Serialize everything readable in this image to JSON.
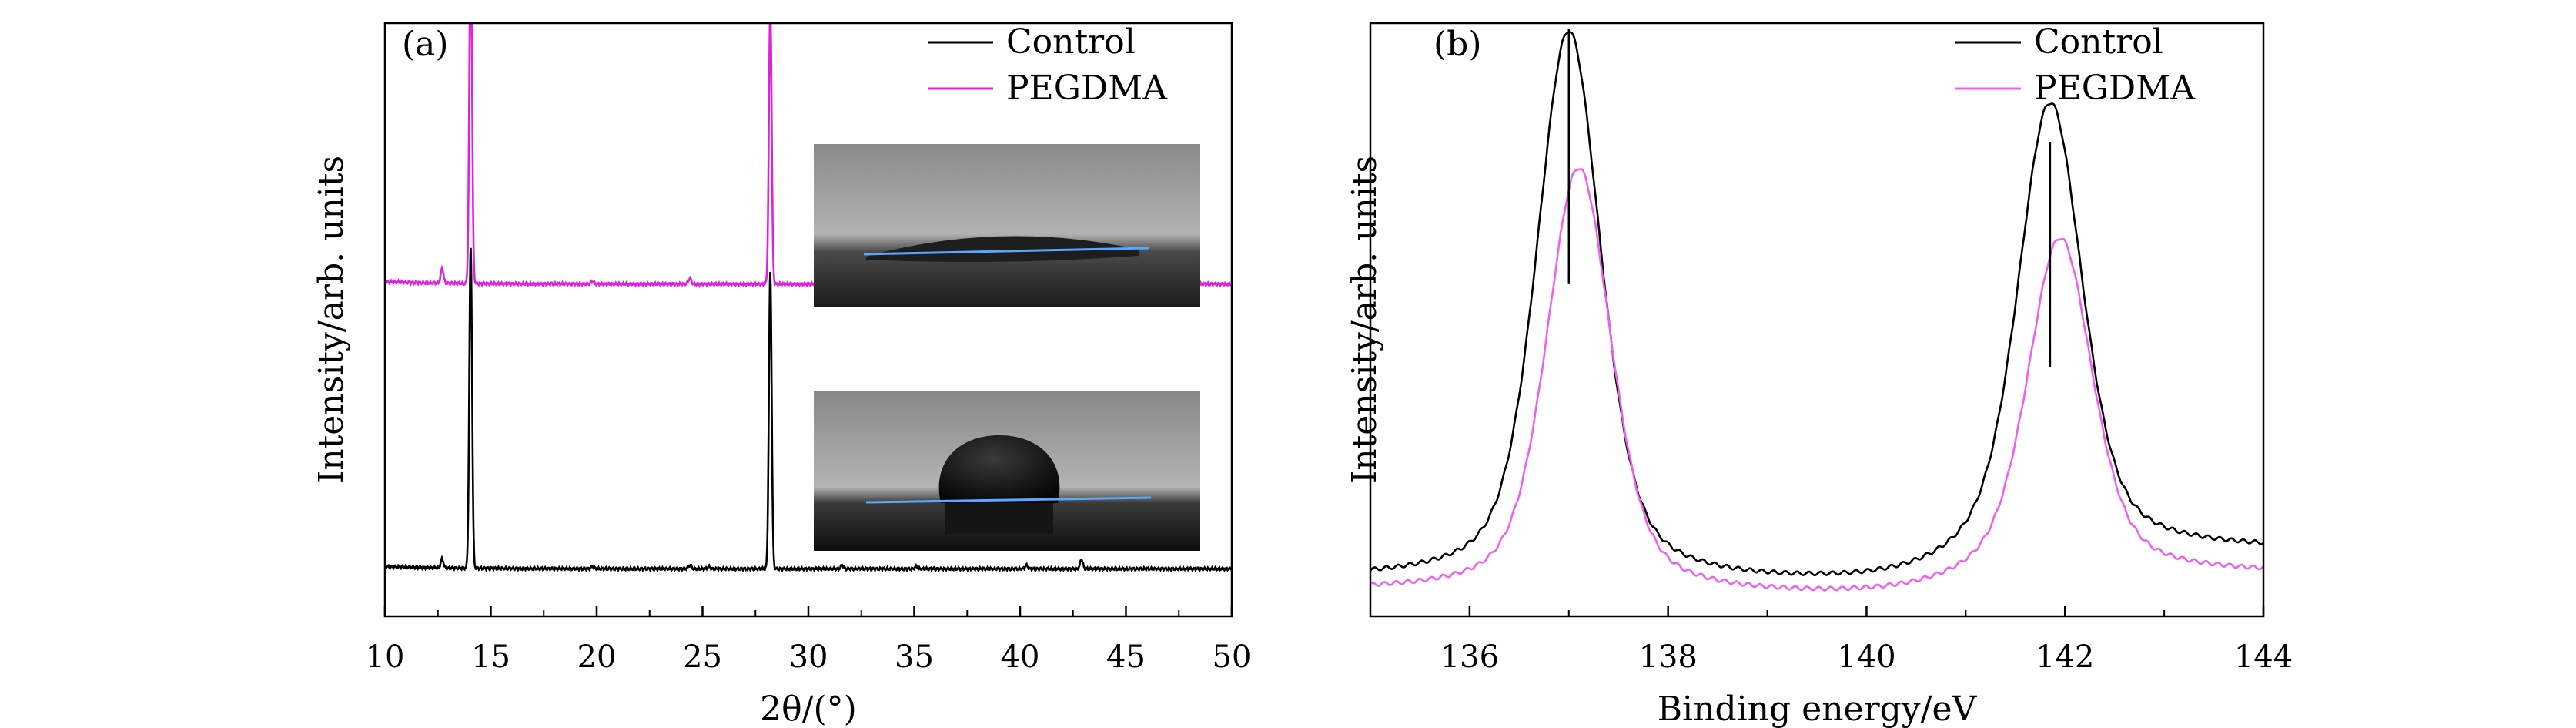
{
  "chart_data": [
    {
      "type": "line",
      "panel_label": "(a)",
      "xlabel": "2θ/(°)",
      "ylabel": "Intensity/arb. units",
      "xlim": [
        10,
        50
      ],
      "xticks": [
        "10",
        "15",
        "20",
        "25",
        "30",
        "35",
        "40",
        "45",
        "50"
      ],
      "yticks_shown": false,
      "legend_position": "top-right",
      "series": [
        {
          "name": "Control",
          "color": "#000000",
          "baseline": 0.08,
          "peaks": [
            {
              "x": 12.7,
              "height": 0.015
            },
            {
              "x": 14.05,
              "height": 0.54
            },
            {
              "x": 19.8,
              "height": 0.004
            },
            {
              "x": 24.4,
              "height": 0.006
            },
            {
              "x": 25.3,
              "height": 0.004
            },
            {
              "x": 28.2,
              "height": 0.5
            },
            {
              "x": 31.6,
              "height": 0.006
            },
            {
              "x": 35.1,
              "height": 0.004
            },
            {
              "x": 40.3,
              "height": 0.006
            },
            {
              "x": 42.9,
              "height": 0.016
            }
          ]
        },
        {
          "name": "PEGDMA",
          "color": "#e020e0",
          "baseline": 0.56,
          "peaks": [
            {
              "x": 12.7,
              "height": 0.025
            },
            {
              "x": 14.05,
              "height": 0.57
            },
            {
              "x": 19.8,
              "height": 0.004
            },
            {
              "x": 24.4,
              "height": 0.01
            },
            {
              "x": 28.2,
              "height": 0.47
            },
            {
              "x": 31.6,
              "height": 0.008
            },
            {
              "x": 35.1,
              "height": 0.004
            },
            {
              "x": 40.3,
              "height": 0.01
            },
            {
              "x": 42.9,
              "height": 0.025
            }
          ]
        }
      ],
      "insets": [
        {
          "name": "contact-angle-photo-pegdma",
          "description": "flat spread droplet"
        },
        {
          "name": "contact-angle-photo-control",
          "description": "round beaded droplet"
        }
      ]
    },
    {
      "type": "line",
      "panel_label": "(b)",
      "xlabel": "Binding energy/eV",
      "ylabel": "Intensity/arb. units",
      "xlim": [
        135,
        144
      ],
      "xticks": [
        "136",
        "138",
        "140",
        "142",
        "144"
      ],
      "yticks_shown": false,
      "legend_position": "top-right",
      "series": [
        {
          "name": "Control",
          "color": "#000000",
          "peaks": [
            {
              "x": 137.0,
              "height": 0.93
            },
            {
              "x": 141.85,
              "height": 0.76
            }
          ],
          "baseline_left": 0.06,
          "baseline_right": 0.12
        },
        {
          "name": "PEGDMA",
          "color": "#f060f0",
          "peaks": [
            {
              "x": 137.1,
              "height": 0.72
            },
            {
              "x": 141.95,
              "height": 0.57
            }
          ],
          "baseline_left": 0.04,
          "baseline_right": 0.08
        }
      ],
      "markers": [
        {
          "x": 137.0,
          "from": 0.56,
          "to": 0.99
        },
        {
          "x": 141.85,
          "from": 0.42,
          "to": 0.8
        }
      ]
    }
  ]
}
